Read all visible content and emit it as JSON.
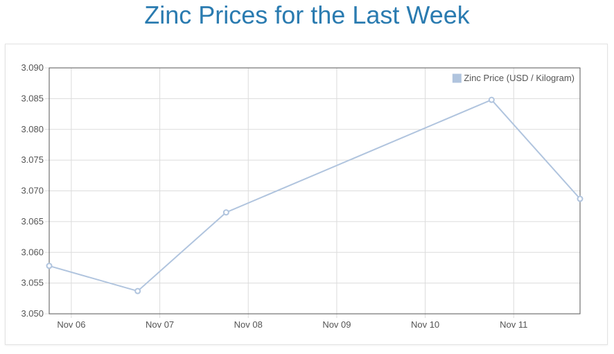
{
  "page": {
    "title": "Zinc Prices for the Last Week"
  },
  "chart_data": {
    "type": "line",
    "title": "Zinc Prices for the Last Week",
    "xlabel": "",
    "ylabel": "",
    "x_ticks": [
      "Nov 06",
      "Nov 07",
      "Nov 08",
      "Nov 09",
      "Nov 10",
      "Nov 11"
    ],
    "y_ticks": [
      "3.050",
      "3.055",
      "3.060",
      "3.065",
      "3.070",
      "3.075",
      "3.080",
      "3.085",
      "3.090"
    ],
    "ylim": [
      3.05,
      3.09
    ],
    "xlim": [
      "2023-11-05 18:00",
      "2023-11-11 18:00"
    ],
    "grid": true,
    "legend_position": "top-right",
    "series": [
      {
        "name": "Zinc Price (USD / Kilogram)",
        "color": "#b0c4de",
        "points": [
          {
            "x": "2023-11-05 18:00",
            "y": 3.0578
          },
          {
            "x": "2023-11-06 18:00",
            "y": 3.0537
          },
          {
            "x": "2023-11-07 18:00",
            "y": 3.0665
          },
          {
            "x": "2023-11-10 18:00",
            "y": 3.0848
          },
          {
            "x": "2023-11-11 18:00",
            "y": 3.0687
          }
        ]
      }
    ]
  }
}
